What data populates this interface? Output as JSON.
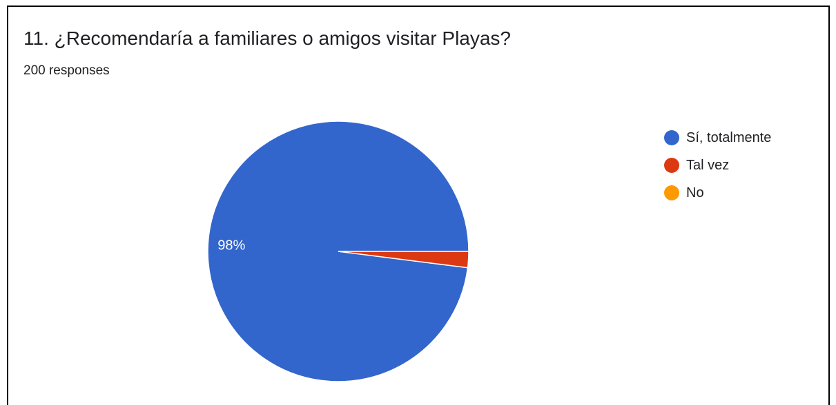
{
  "card": {
    "title": "11. ¿Recomendaría a familiares o amigos visitar Playas?",
    "subtitle": "200 responses"
  },
  "chart_data": {
    "type": "pie",
    "categories": [
      "Sí, totalmente",
      "Tal vez",
      "No"
    ],
    "values": [
      98,
      2,
      0
    ],
    "colors": [
      "#3366cc",
      "#dc3912",
      "#ff9900"
    ],
    "data_labels": [
      "98%",
      "",
      ""
    ],
    "legend_position": "right"
  }
}
